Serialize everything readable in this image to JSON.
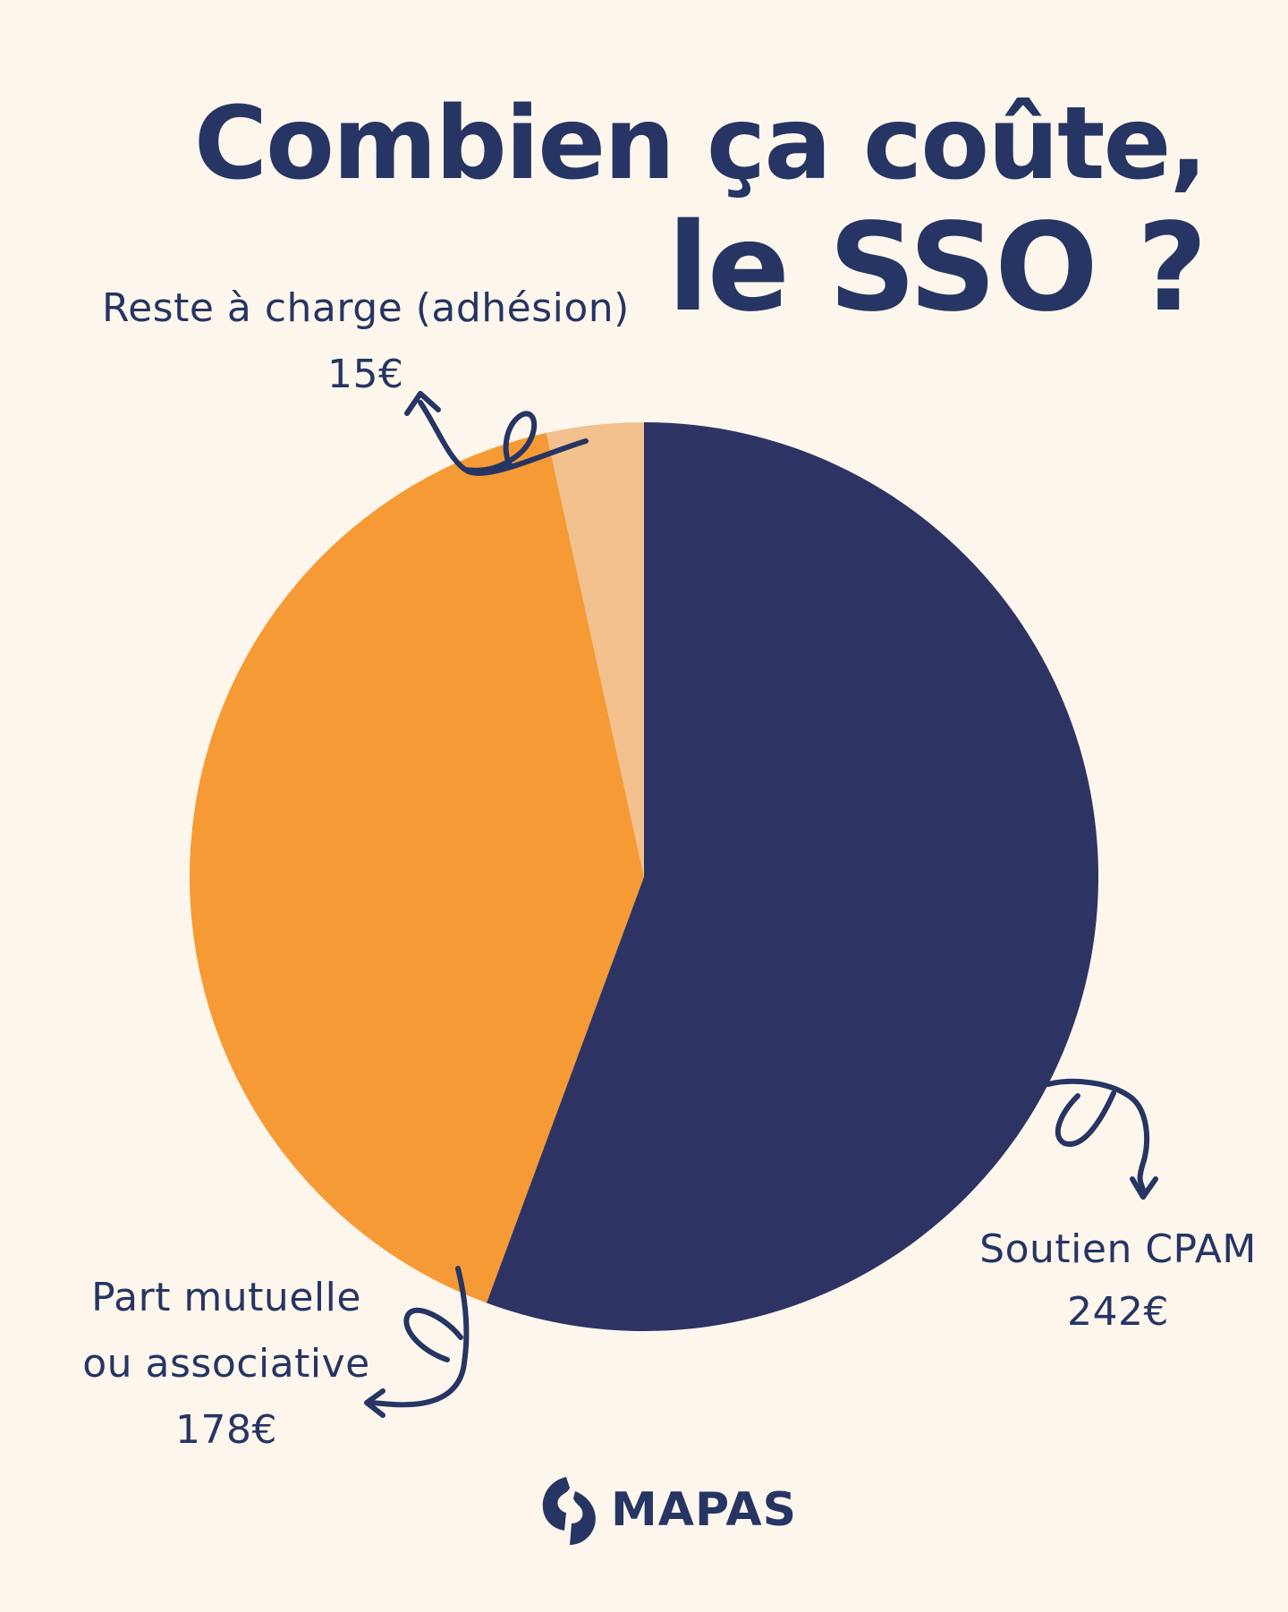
{
  "title": {
    "line1": "Combien ça coûte,",
    "line2": "le SSO ?"
  },
  "colors": {
    "background": "#fdf6ec",
    "navy": "#2d3463",
    "orange": "#f59a35",
    "peach": "#f3c18d",
    "text": "#263563"
  },
  "chart_data": {
    "type": "pie",
    "title": "Combien ça coûte, le SSO ?",
    "unit": "€",
    "start_angle_deg": 0,
    "direction": "clockwise",
    "slices": [
      {
        "label": "Soutien CPAM",
        "value": 242,
        "display": "242€",
        "color": "#2d3463"
      },
      {
        "label": "Part mutuelle ou associative",
        "value": 178,
        "display": "178€",
        "color": "#f59a35"
      },
      {
        "label": "Reste à charge (adhésion)",
        "value": 15,
        "display": "15€",
        "color": "#f3c18d"
      }
    ]
  },
  "labels": {
    "reste": {
      "text": "Reste à charge (adhésion)",
      "value": "15€"
    },
    "cpam": {
      "text": "Soutien CPAM",
      "value": "242€"
    },
    "mutuelle": {
      "line1": "Part mutuelle",
      "line2": "ou associative",
      "value": "178€"
    }
  },
  "logo": {
    "text": "MAPAS",
    "icon": "mapas-logo-icon"
  }
}
